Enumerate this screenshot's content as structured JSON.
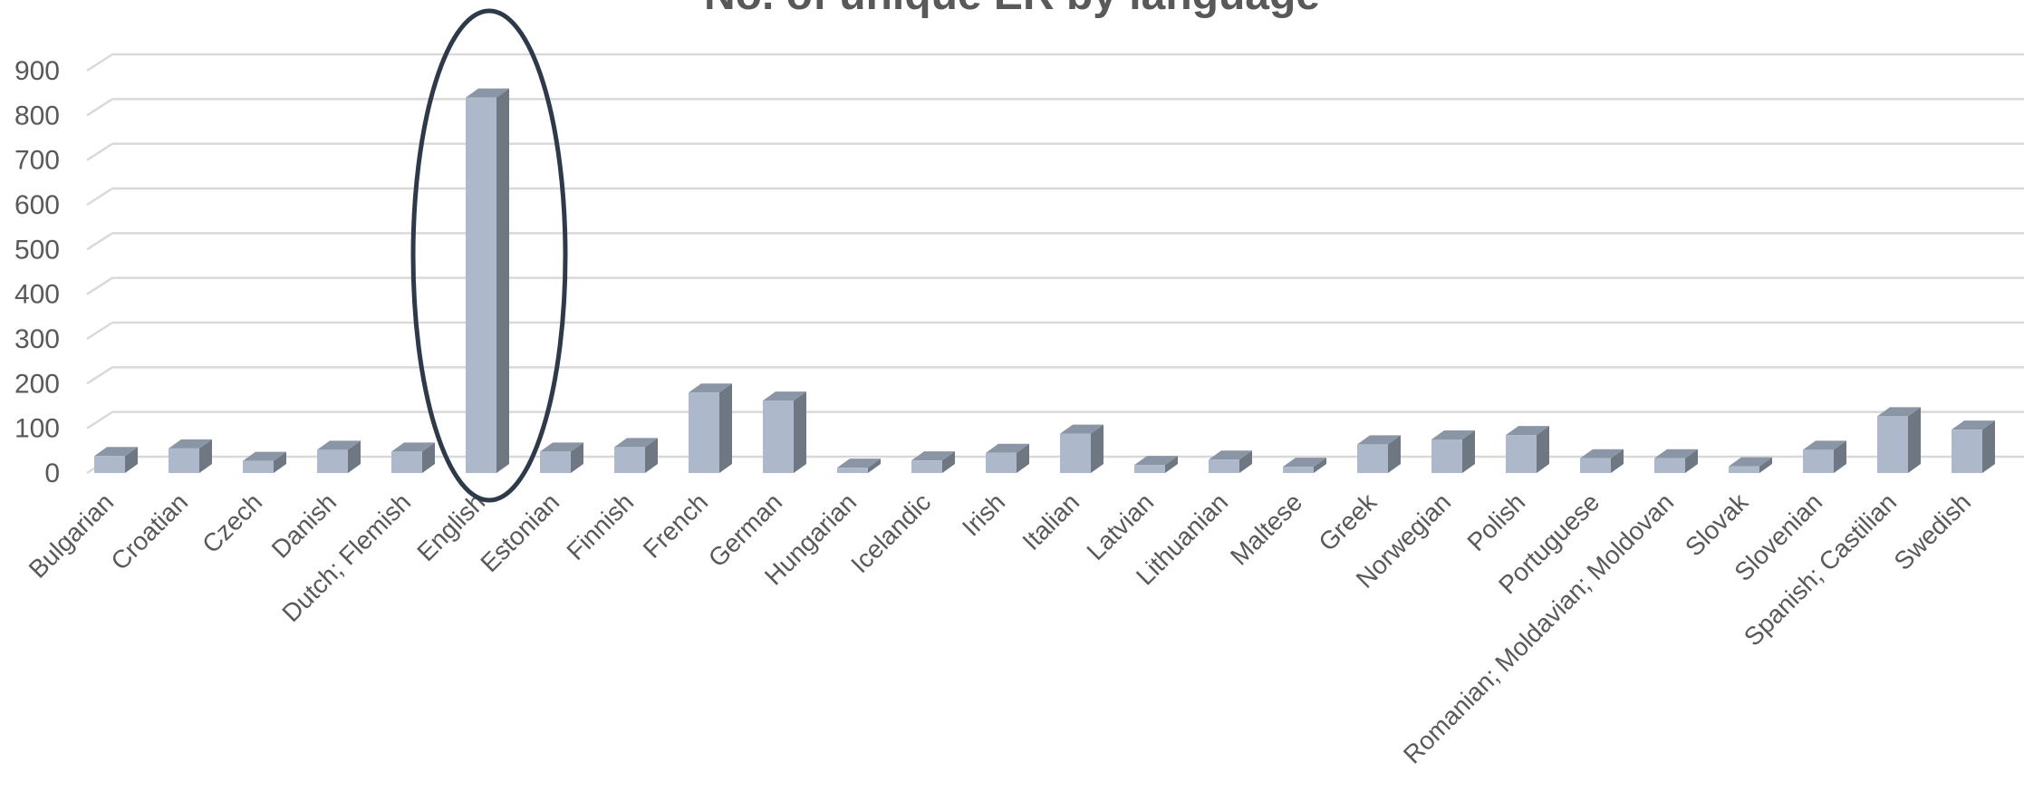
{
  "chart_data": {
    "type": "bar",
    "title": "No. of unique ER by language",
    "xlabel": "",
    "ylabel": "",
    "ylim": [
      0,
      900
    ],
    "yticks": [
      0,
      100,
      200,
      300,
      400,
      500,
      600,
      700,
      800,
      900
    ],
    "grid": true,
    "legend": "none",
    "style": "3d-column",
    "categories": [
      "Bulgarian",
      "Croatian",
      "Czech",
      "Danish",
      "Dutch; Flemish",
      "English",
      "Estonian",
      "Finnish",
      "French",
      "German",
      "Hungarian",
      "Icelandic",
      "Irish",
      "Italian",
      "Latvian",
      "Lithuanian",
      "Maltese",
      "Greek",
      "Norwegian",
      "Polish",
      "Portuguese",
      "Romanian; Moldavian; Moldovan",
      "Slovak",
      "Slovenian",
      "Spanish; Castilian",
      "Swedish"
    ],
    "values": [
      38,
      55,
      27,
      52,
      48,
      840,
      48,
      58,
      180,
      162,
      12,
      28,
      45,
      88,
      18,
      30,
      14,
      64,
      75,
      85,
      33,
      33,
      15,
      52,
      127,
      97
    ],
    "highlighted_category": "English"
  },
  "colors": {
    "bar_front": "#adb9ca",
    "bar_side": "#6f7782",
    "bar_top": "#8a95a5",
    "grid": "#d9d9d9",
    "text": "#595959",
    "highlight_ellipse": "#2e3a4a"
  }
}
